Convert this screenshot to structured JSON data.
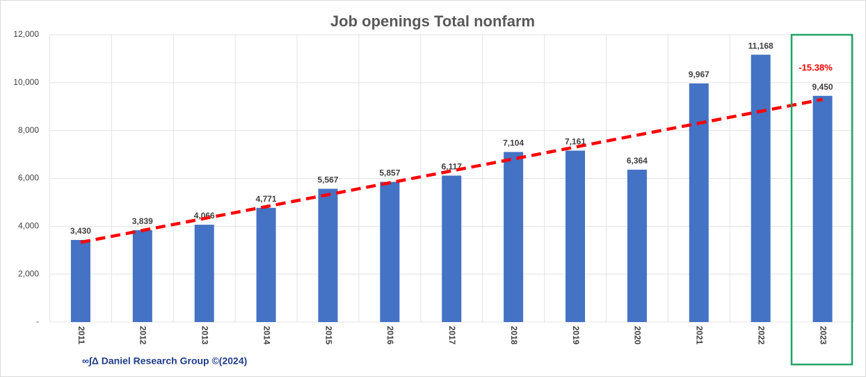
{
  "chart_data": {
    "type": "bar",
    "title": "Job openings Total nonfarm",
    "categories": [
      "2011",
      "2012",
      "2013",
      "2014",
      "2015",
      "2016",
      "2017",
      "2018",
      "2019",
      "2020",
      "2021",
      "2022",
      "2023"
    ],
    "values": [
      3430,
      3839,
      4066,
      4771,
      5567,
      5857,
      6117,
      7104,
      7161,
      6364,
      9967,
      11168,
      9450
    ],
    "value_labels": [
      "3,430",
      "3,839",
      "4,066",
      "4,771",
      "5,567",
      "5,857",
      "6,117",
      "7,104",
      "7,161",
      "6,364",
      "9,967",
      "11,168",
      "9,450"
    ],
    "color": "#4472c4",
    "ylim": [
      0,
      12000
    ],
    "yticks": [
      {
        "value": 0,
        "label": "-"
      },
      {
        "value": 2000,
        "label": "2,000"
      },
      {
        "value": 4000,
        "label": "4,000"
      },
      {
        "value": 6000,
        "label": "6,000"
      },
      {
        "value": 8000,
        "label": "8,000"
      },
      {
        "value": 10000,
        "label": "10,000"
      },
      {
        "value": 12000,
        "label": "12,000"
      }
    ],
    "grid": true,
    "trend": {
      "color": "#ff0000",
      "values": [
        3330,
        9300
      ]
    },
    "annotation": "-15.38%",
    "annotation_color": "#ff0000",
    "source": "∞∫Δ Daniel Research Group ©(2024)"
  }
}
